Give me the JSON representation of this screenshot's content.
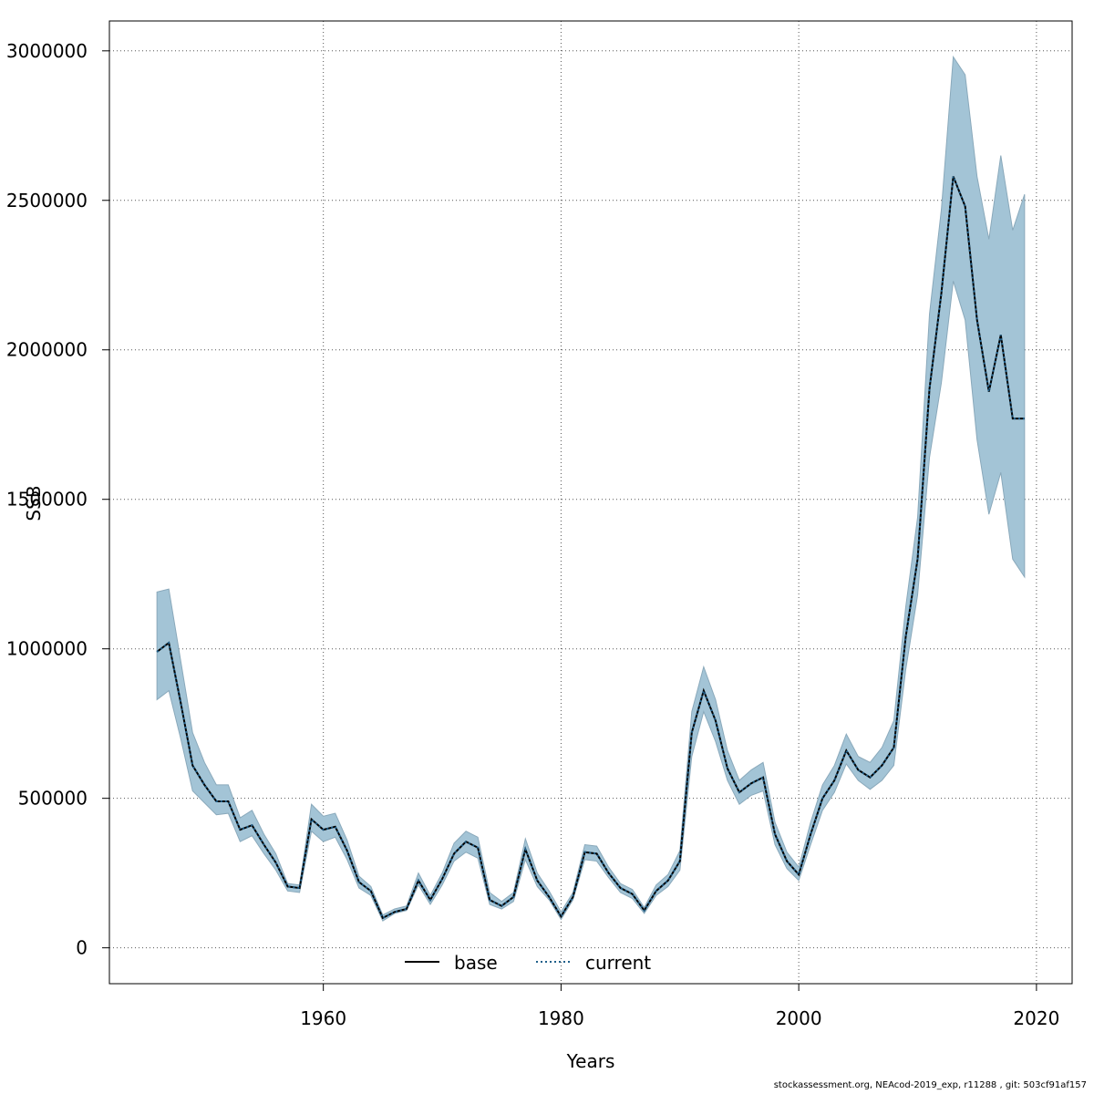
{
  "chart_data": {
    "type": "line",
    "xlabel": "Years",
    "ylabel": "SSB",
    "xlim": [
      1942,
      2023
    ],
    "ylim": [
      -120000,
      3100000
    ],
    "x_ticks": [
      1960,
      1980,
      2000,
      2020
    ],
    "y_ticks": [
      0,
      500000,
      1000000,
      1500000,
      2000000,
      2500000,
      3000000
    ],
    "grid": true,
    "legend_position": "bottom-center",
    "colors": {
      "band": "#a3c4d6",
      "base": "#000000",
      "current": "#1f5f8a"
    },
    "x": [
      1946,
      1947,
      1948,
      1949,
      1950,
      1951,
      1952,
      1953,
      1954,
      1955,
      1956,
      1957,
      1958,
      1959,
      1960,
      1961,
      1962,
      1963,
      1964,
      1965,
      1966,
      1967,
      1968,
      1969,
      1970,
      1971,
      1972,
      1973,
      1974,
      1975,
      1976,
      1977,
      1978,
      1979,
      1980,
      1981,
      1982,
      1983,
      1984,
      1985,
      1986,
      1987,
      1988,
      1989,
      1990,
      1991,
      1992,
      1993,
      1994,
      1995,
      1996,
      1997,
      1998,
      1999,
      2000,
      2001,
      2002,
      2003,
      2004,
      2005,
      2006,
      2007,
      2008,
      2009,
      2010,
      2011,
      2012,
      2013,
      2014,
      2015,
      2016,
      2017,
      2018,
      2019
    ],
    "upper": [
      1190000,
      1200000,
      960000,
      720000,
      620000,
      545000,
      545000,
      435000,
      460000,
      380000,
      315000,
      215000,
      210000,
      480000,
      440000,
      450000,
      360000,
      240000,
      205000,
      110000,
      130000,
      140000,
      250000,
      175000,
      250000,
      350000,
      390000,
      370000,
      185000,
      155000,
      185000,
      365000,
      250000,
      190000,
      120000,
      185000,
      345000,
      340000,
      270000,
      215000,
      195000,
      135000,
      210000,
      245000,
      325000,
      790000,
      940000,
      830000,
      660000,
      560000,
      595000,
      620000,
      420000,
      320000,
      270000,
      420000,
      545000,
      610000,
      715000,
      640000,
      620000,
      670000,
      760000,
      1140000,
      1440000,
      2120000,
      2470000,
      2980000,
      2920000,
      2580000,
      2370000,
      2650000,
      2400000,
      2520000
    ],
    "lower": [
      830000,
      860000,
      700000,
      525000,
      485000,
      445000,
      450000,
      355000,
      375000,
      315000,
      260000,
      190000,
      185000,
      390000,
      355000,
      370000,
      295000,
      200000,
      175000,
      90000,
      115000,
      125000,
      210000,
      145000,
      210000,
      290000,
      320000,
      300000,
      145000,
      130000,
      155000,
      295000,
      205000,
      160000,
      95000,
      160000,
      295000,
      290000,
      235000,
      185000,
      165000,
      115000,
      175000,
      205000,
      260000,
      640000,
      790000,
      690000,
      560000,
      480000,
      510000,
      525000,
      345000,
      265000,
      225000,
      345000,
      460000,
      520000,
      615000,
      560000,
      530000,
      560000,
      610000,
      930000,
      1180000,
      1640000,
      1890000,
      2230000,
      2100000,
      1700000,
      1450000,
      1590000,
      1300000,
      1240000
    ],
    "series": [
      {
        "name": "base",
        "values": [
          990000,
          1020000,
          820000,
          610000,
          545000,
          490000,
          490000,
          395000,
          410000,
          345000,
          285000,
          205000,
          200000,
          430000,
          395000,
          405000,
          325000,
          220000,
          190000,
          100000,
          120000,
          130000,
          225000,
          160000,
          230000,
          315000,
          355000,
          335000,
          160000,
          140000,
          170000,
          330000,
          225000,
          170000,
          105000,
          170000,
          320000,
          315000,
          250000,
          200000,
          180000,
          125000,
          190000,
          225000,
          290000,
          720000,
          860000,
          760000,
          600000,
          520000,
          550000,
          570000,
          380000,
          290000,
          245000,
          380000,
          500000,
          560000,
          660000,
          595000,
          570000,
          610000,
          670000,
          1040000,
          1300000,
          1870000,
          2190000,
          2580000,
          2480000,
          2100000,
          1860000,
          2050000,
          1770000,
          1770000
        ]
      },
      {
        "name": "current",
        "values": [
          990000,
          1020000,
          820000,
          610000,
          545000,
          490000,
          490000,
          395000,
          410000,
          345000,
          285000,
          205000,
          200000,
          430000,
          395000,
          405000,
          325000,
          220000,
          190000,
          100000,
          120000,
          130000,
          225000,
          160000,
          230000,
          315000,
          355000,
          335000,
          160000,
          140000,
          170000,
          330000,
          225000,
          170000,
          105000,
          170000,
          320000,
          315000,
          250000,
          200000,
          180000,
          125000,
          190000,
          225000,
          290000,
          720000,
          860000,
          760000,
          600000,
          520000,
          550000,
          570000,
          380000,
          290000,
          245000,
          380000,
          500000,
          560000,
          660000,
          595000,
          570000,
          610000,
          670000,
          1040000,
          1300000,
          1870000,
          2190000,
          2580000,
          2480000,
          2100000,
          1860000,
          2050000,
          1770000,
          1770000
        ]
      }
    ]
  },
  "footer": "stockassessment.org, NEAcod-2019_exp, r11288 , git: 503cf91af157"
}
